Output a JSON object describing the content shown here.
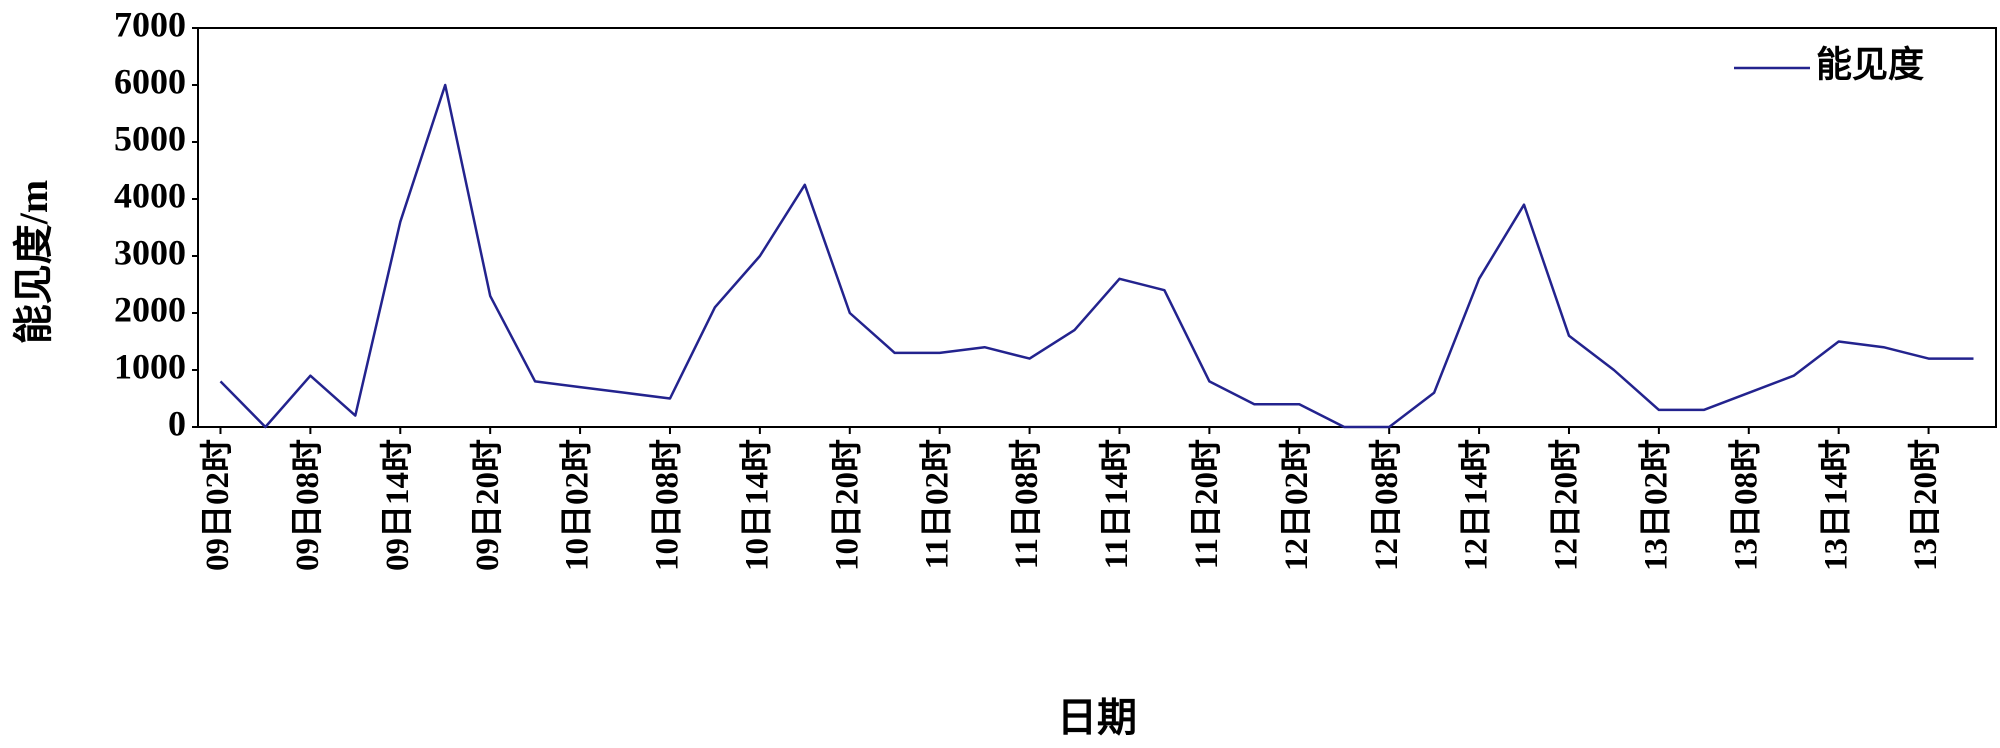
{
  "chart_data": {
    "type": "line",
    "y_label": "能见度/m",
    "x_label": "日期",
    "categories": [
      "09日02时",
      null,
      "09日08时",
      null,
      "09日14时",
      null,
      "09日20时",
      null,
      "10日02时",
      null,
      "10日08时",
      null,
      "10日14时",
      null,
      "10日20时",
      null,
      "11日02时",
      null,
      "11日08时",
      null,
      "11日14时",
      null,
      "11日20时",
      null,
      "12日02时",
      null,
      "12日08时",
      null,
      "12日14时",
      null,
      "12日20时",
      null,
      "13日02时",
      null,
      "13日08时",
      null,
      "13日14时",
      null,
      "13日20时",
      null
    ],
    "series": [
      {
        "name": "能见度",
        "color": "#23238e",
        "values": [
          800,
          0,
          900,
          200,
          3600,
          6000,
          2300,
          800,
          700,
          600,
          500,
          2100,
          3000,
          4250,
          2000,
          1300,
          1300,
          1400,
          1200,
          1700,
          2600,
          2400,
          800,
          400,
          400,
          0,
          0,
          600,
          2600,
          3900,
          1600,
          1000,
          300,
          300,
          600,
          900,
          1500,
          1400,
          1200,
          1200
        ]
      }
    ],
    "ylim": [
      0,
      7000
    ],
    "yticks": [
      0,
      1000,
      2000,
      3000,
      4000,
      5000,
      6000,
      7000
    ],
    "legend": "top-right"
  }
}
